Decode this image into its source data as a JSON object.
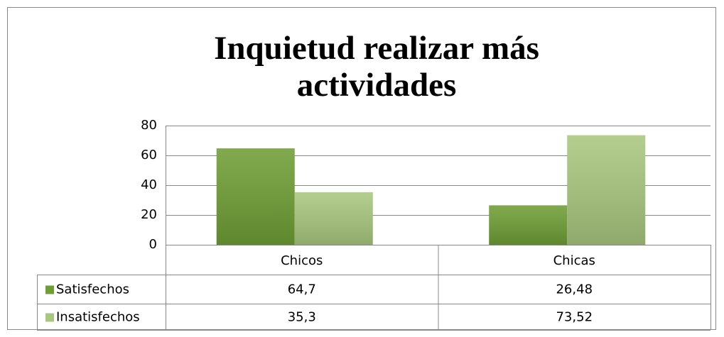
{
  "chart_data": {
    "type": "bar",
    "title": "Inquietud realizar más actividades",
    "categories": [
      "Chicos",
      "Chicas"
    ],
    "series": [
      {
        "name": "Satisfechos",
        "color": "#6f9e35",
        "values": [
          64.7,
          26.48
        ],
        "value_labels": [
          "64,7",
          "26,48"
        ]
      },
      {
        "name": "Insatisfechos",
        "color": "#a9c77f",
        "values": [
          35.3,
          73.52
        ],
        "value_labels": [
          "35,3",
          "73,52"
        ]
      }
    ],
    "ylim": [
      0,
      80
    ],
    "yticks": [
      0,
      20,
      40,
      60,
      80
    ],
    "grid": true,
    "data_table": true
  }
}
